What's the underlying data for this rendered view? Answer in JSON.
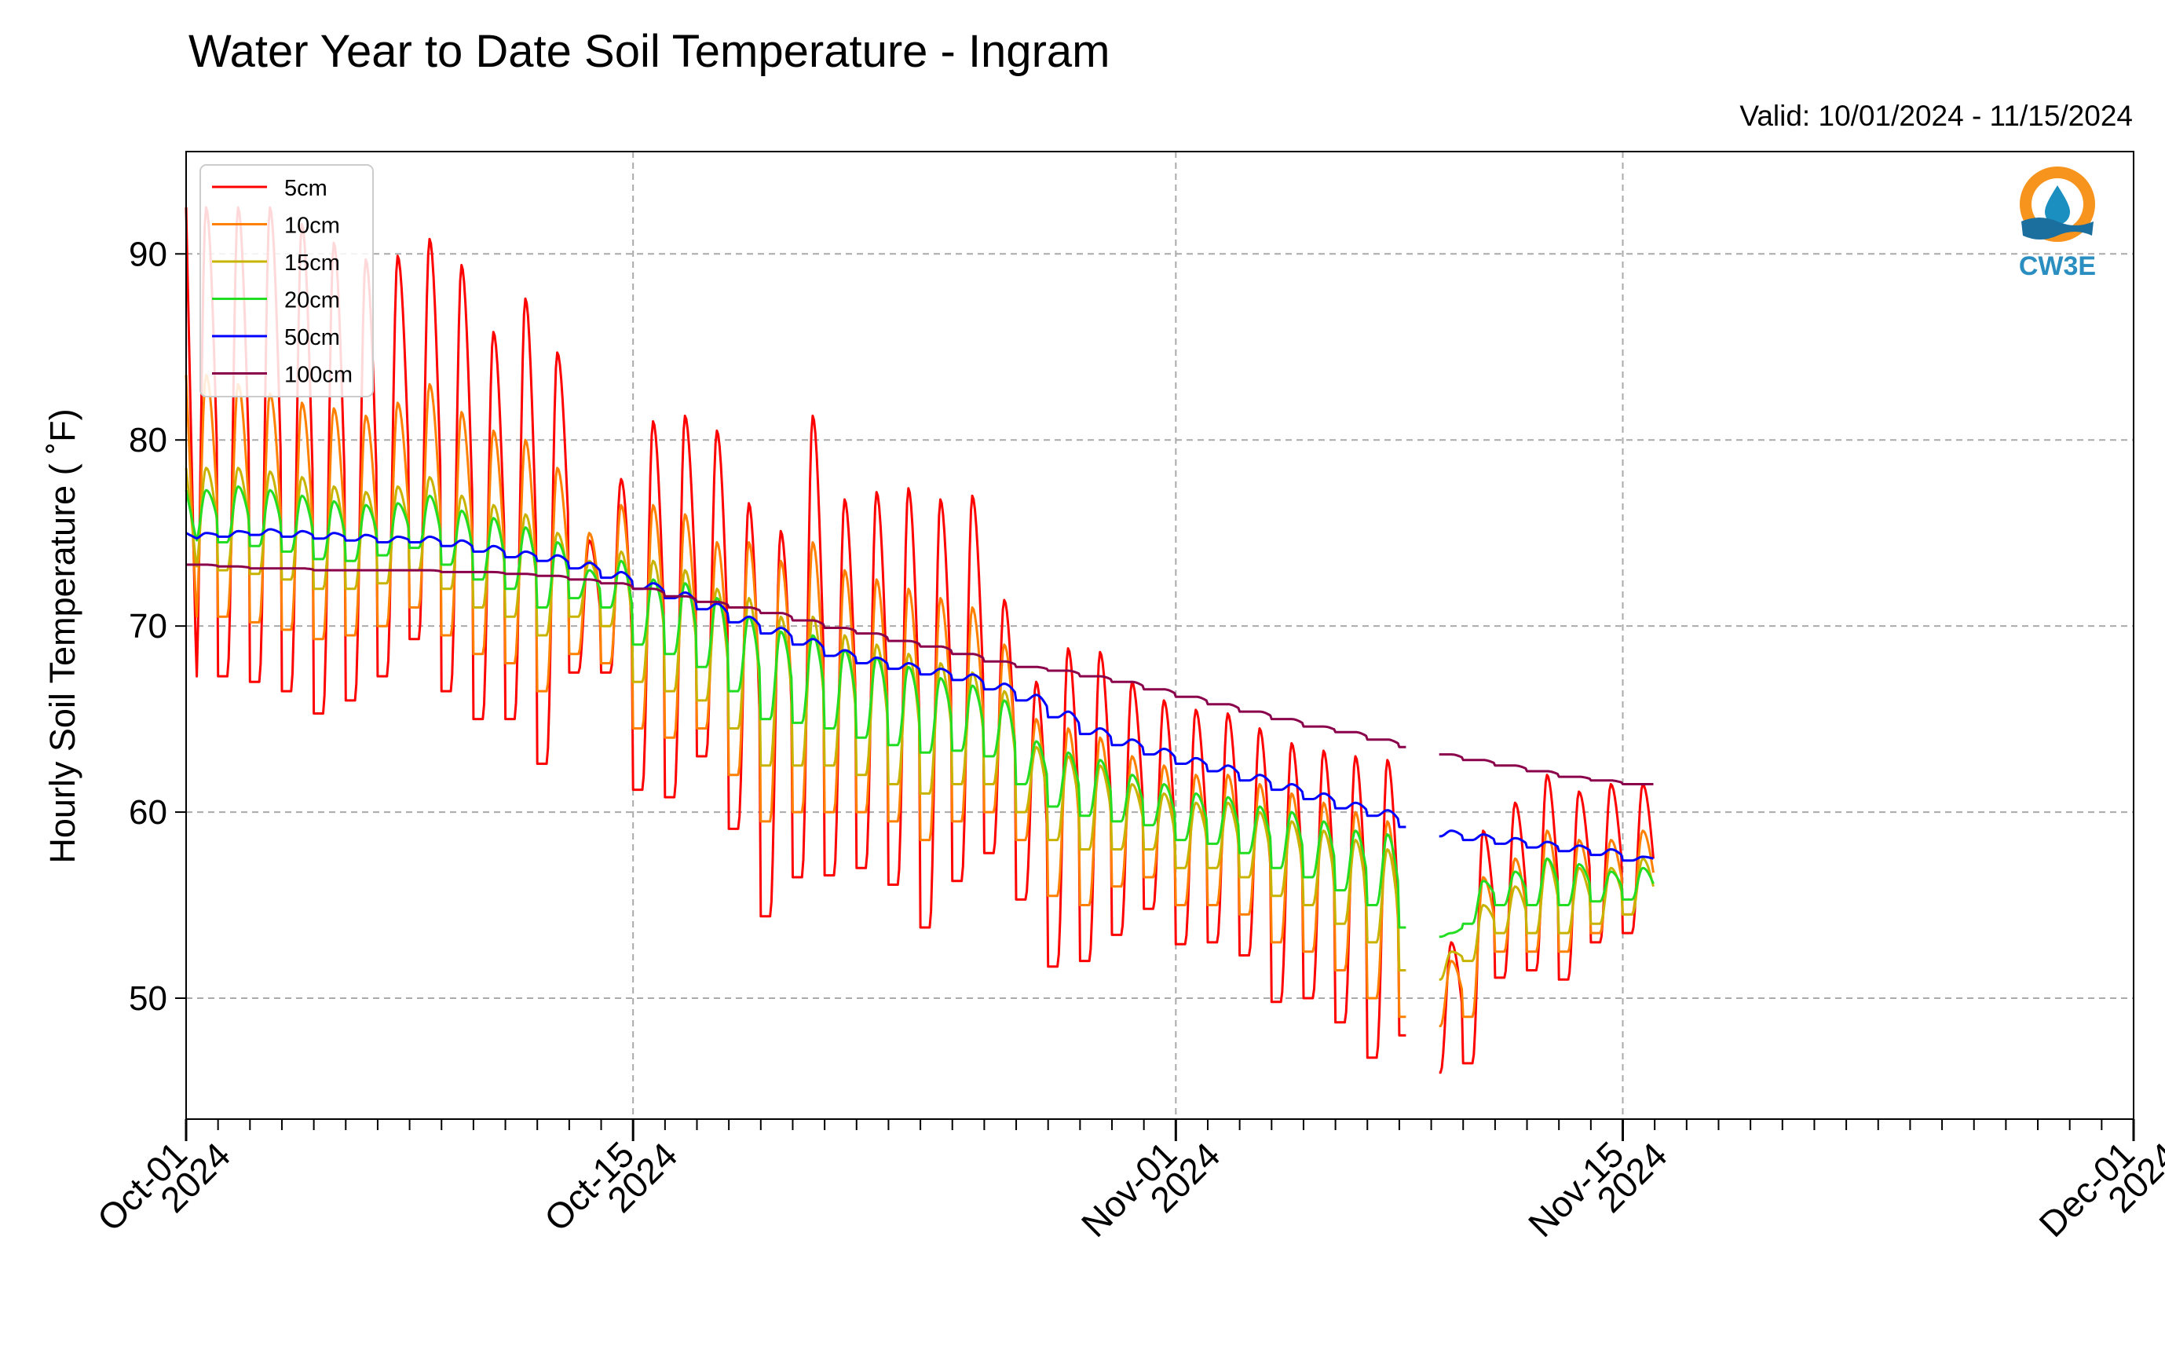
{
  "chart_data": {
    "type": "line",
    "title": "Water Year to Date Soil Temperature - Ingram",
    "subtitle": "Valid: 10/01/2024 - 11/15/2024",
    "ylabel": "Hourly Soil Temperature ( ˚F)",
    "xlabel": "",
    "xlim": [
      "2024-10-01",
      "2024-12-01"
    ],
    "ylim": [
      43.5,
      95.5
    ],
    "yticks": [
      50,
      60,
      70,
      80,
      90
    ],
    "ytick_labels": [
      "50",
      "60",
      "70",
      "80",
      "90"
    ],
    "xticks": [
      {
        "date": "2024-10-01",
        "line1": "Oct-01",
        "line2": "2024"
      },
      {
        "date": "2024-10-15",
        "line1": "Oct-15",
        "line2": "2024"
      },
      {
        "date": "2024-11-01",
        "line1": "Nov-01",
        "line2": "2024"
      },
      {
        "date": "2024-11-15",
        "line1": "Nov-15",
        "line2": "2024"
      },
      {
        "date": "2024-12-01",
        "line1": "Dec-01",
        "line2": "2024"
      }
    ],
    "grid": true,
    "legend_position": "top-left",
    "logo_text": "CW3E",
    "data_gaps": [
      [
        "2024-11-08T06:00",
        "2024-11-09T06:00"
      ]
    ],
    "series": [
      {
        "name": "5cm",
        "color": "#ff0000",
        "daily_max": [
          92.5,
          92.5,
          92.5,
          91.6,
          90.6,
          89.7,
          89.9,
          90.8,
          89.4,
          85.8,
          87.6,
          84.7,
          74.6,
          77.9,
          81.0,
          81.3,
          80.5,
          76.6,
          75.1,
          81.3,
          76.8,
          77.2,
          77.4,
          76.8,
          77.0,
          71.4,
          67.0,
          68.8,
          68.6,
          67.0,
          66.0,
          65.5,
          65.3,
          64.5,
          63.7,
          63.3,
          63.0,
          62.8,
          57.5,
          53.0,
          59.0,
          60.5,
          62.0,
          61.1,
          61.5,
          61.5
        ],
        "daily_min": [
          66.3,
          67.3,
          67.0,
          66.5,
          65.3,
          66.0,
          67.3,
          69.3,
          66.5,
          65.0,
          65.0,
          62.6,
          67.5,
          67.5,
          61.2,
          60.8,
          63.0,
          59.1,
          54.4,
          56.5,
          56.6,
          57.0,
          56.1,
          53.8,
          56.3,
          57.8,
          55.3,
          51.7,
          52.0,
          53.4,
          54.8,
          52.9,
          53.0,
          52.3,
          49.8,
          50.0,
          48.7,
          46.8,
          48.0,
          46.0,
          46.5,
          51.1,
          51.5,
          51.0,
          53.0,
          53.5
        ]
      },
      {
        "name": "10cm",
        "color": "#ff8000",
        "daily_max": [
          83.5,
          83.0,
          82.5,
          82.0,
          81.7,
          81.3,
          82.0,
          83.0,
          81.5,
          80.5,
          80.0,
          78.5,
          75.0,
          76.5,
          76.5,
          76.0,
          74.5,
          74.5,
          73.5,
          74.5,
          73.0,
          72.5,
          72.0,
          71.5,
          71.0,
          69.0,
          65.0,
          64.5,
          64.0,
          63.0,
          62.5,
          62.0,
          62.0,
          61.5,
          61.0,
          60.5,
          60.0,
          59.5,
          55.0,
          52.0,
          56.5,
          57.5,
          59.0,
          58.5,
          58.5,
          59.0
        ],
        "daily_min": [
          70.0,
          70.5,
          70.2,
          69.8,
          69.3,
          69.5,
          70.0,
          71.0,
          69.5,
          68.5,
          68.0,
          66.5,
          68.5,
          68.0,
          64.5,
          64.0,
          64.5,
          62.0,
          59.5,
          60.0,
          60.0,
          60.0,
          59.5,
          58.5,
          59.5,
          60.0,
          58.5,
          55.5,
          55.0,
          56.0,
          56.5,
          55.0,
          55.0,
          54.5,
          53.0,
          52.5,
          51.5,
          50.0,
          49.0,
          48.5,
          49.0,
          52.5,
          52.5,
          52.5,
          53.5,
          54.5
        ]
      },
      {
        "name": "15cm",
        "color": "#c8b400",
        "daily_max": [
          78.5,
          78.5,
          78.3,
          78.0,
          77.5,
          77.2,
          77.5,
          78.0,
          77.0,
          76.5,
          76.0,
          75.0,
          73.5,
          74.0,
          73.5,
          73.0,
          72.0,
          71.5,
          70.5,
          70.5,
          69.5,
          69.0,
          68.5,
          68.0,
          67.5,
          66.5,
          63.5,
          63.0,
          62.5,
          61.5,
          61.0,
          60.5,
          60.5,
          60.0,
          59.5,
          59.0,
          58.5,
          58.0,
          54.0,
          52.5,
          55.0,
          56.0,
          57.5,
          57.0,
          57.0,
          57.5
        ],
        "daily_min": [
          73.0,
          73.0,
          72.8,
          72.5,
          72.0,
          72.0,
          72.3,
          73.0,
          72.0,
          71.0,
          70.5,
          69.5,
          70.5,
          70.0,
          67.0,
          66.5,
          66.0,
          64.5,
          62.5,
          62.5,
          62.5,
          62.0,
          61.5,
          61.0,
          61.5,
          61.5,
          60.0,
          58.5,
          58.0,
          58.0,
          58.0,
          57.0,
          57.0,
          56.5,
          55.5,
          55.0,
          54.0,
          53.0,
          51.5,
          51.0,
          52.0,
          53.5,
          53.5,
          53.5,
          54.0,
          54.5
        ]
      },
      {
        "name": "20cm",
        "color": "#22dd22",
        "daily_max": [
          77.3,
          77.5,
          77.3,
          77.0,
          76.7,
          76.5,
          76.6,
          77.0,
          76.2,
          75.8,
          75.3,
          74.5,
          73.0,
          73.5,
          72.5,
          72.3,
          71.5,
          70.5,
          69.7,
          69.5,
          68.7,
          68.3,
          67.8,
          67.2,
          66.8,
          66.0,
          63.8,
          63.2,
          62.8,
          62.0,
          61.5,
          61.0,
          60.8,
          60.3,
          60.0,
          59.5,
          59.0,
          58.8,
          55.5,
          53.5,
          56.3,
          56.8,
          57.5,
          57.2,
          56.8,
          57.0
        ],
        "daily_min": [
          74.5,
          74.5,
          74.3,
          74.0,
          73.6,
          73.5,
          73.8,
          74.2,
          73.3,
          72.5,
          72.0,
          71.0,
          71.5,
          71.0,
          69.0,
          68.5,
          67.8,
          66.5,
          65.0,
          64.8,
          64.5,
          64.0,
          63.6,
          63.2,
          63.3,
          63.0,
          61.5,
          60.3,
          59.8,
          59.5,
          59.3,
          58.5,
          58.3,
          57.8,
          57.0,
          56.5,
          55.8,
          55.0,
          53.8,
          53.3,
          54.0,
          55.0,
          55.0,
          55.0,
          55.2,
          55.3
        ]
      },
      {
        "name": "50cm",
        "color": "#0000ff",
        "daily_max": [
          75.0,
          75.1,
          75.2,
          75.1,
          75.0,
          74.9,
          74.8,
          74.8,
          74.6,
          74.3,
          74.0,
          73.8,
          73.4,
          72.9,
          72.3,
          71.8,
          71.2,
          70.5,
          69.9,
          69.3,
          68.7,
          68.3,
          68.0,
          67.7,
          67.4,
          66.9,
          66.3,
          65.4,
          64.5,
          63.9,
          63.4,
          62.9,
          62.5,
          62.0,
          61.5,
          61.0,
          60.5,
          60.1,
          59.5,
          59.0,
          58.8,
          58.6,
          58.4,
          58.2,
          58.0,
          57.6
        ],
        "daily_min": [
          74.7,
          74.8,
          74.9,
          74.8,
          74.7,
          74.6,
          74.5,
          74.5,
          74.3,
          74.0,
          73.7,
          73.5,
          73.1,
          72.6,
          72.0,
          71.5,
          70.9,
          70.2,
          69.6,
          69.0,
          68.4,
          68.0,
          67.7,
          67.4,
          67.1,
          66.6,
          66.0,
          65.1,
          64.2,
          63.6,
          63.1,
          62.6,
          62.2,
          61.7,
          61.2,
          60.7,
          60.2,
          59.8,
          59.2,
          58.7,
          58.5,
          58.3,
          58.1,
          57.9,
          57.7,
          57.4
        ]
      },
      {
        "name": "100cm",
        "color": "#8b004b",
        "daily_max": [
          73.3,
          73.2,
          73.1,
          73.1,
          73.0,
          73.0,
          73.0,
          73.0,
          72.9,
          72.9,
          72.8,
          72.7,
          72.5,
          72.3,
          72.0,
          71.6,
          71.3,
          71.0,
          70.7,
          70.3,
          69.9,
          69.6,
          69.2,
          68.9,
          68.5,
          68.1,
          67.8,
          67.6,
          67.3,
          67.0,
          66.6,
          66.2,
          65.8,
          65.4,
          65.0,
          64.6,
          64.3,
          63.9,
          63.5,
          63.1,
          62.8,
          62.5,
          62.2,
          61.9,
          61.7,
          61.5
        ],
        "daily_min": [
          73.3,
          73.2,
          73.1,
          73.1,
          73.0,
          73.0,
          73.0,
          73.0,
          72.9,
          72.9,
          72.8,
          72.7,
          72.5,
          72.3,
          72.0,
          71.6,
          71.3,
          71.0,
          70.7,
          70.3,
          69.9,
          69.6,
          69.2,
          68.9,
          68.5,
          68.1,
          67.8,
          67.6,
          67.3,
          67.0,
          66.6,
          66.2,
          65.8,
          65.4,
          65.0,
          64.6,
          64.3,
          63.9,
          63.5,
          63.1,
          62.8,
          62.5,
          62.2,
          61.9,
          61.7,
          61.5
        ]
      }
    ]
  }
}
